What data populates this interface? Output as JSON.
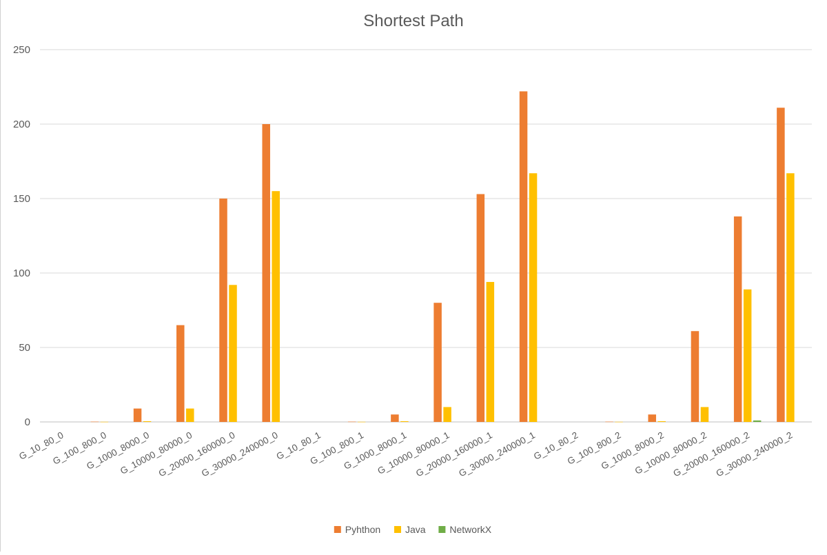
{
  "chart_data": {
    "type": "bar",
    "title": "Shortest Path",
    "xlabel": "",
    "ylabel": "",
    "ylim": [
      0,
      250
    ],
    "yticks": [
      0,
      50,
      100,
      150,
      200,
      250
    ],
    "grid": true,
    "legend_position": "bottom",
    "categories": [
      "G_10_80_0",
      "G_100_800_0",
      "G_1000_8000_0",
      "G_10000_80000_0",
      "G_20000_160000_0",
      "G_30000_240000_0",
      "G_10_80_1",
      "G_100_800_1",
      "G_1000_8000_1",
      "G_10000_80000_1",
      "G_20000_160000_1",
      "G_30000_240000_1",
      "G_10_80_2",
      "G_100_800_2",
      "G_1000_8000_2",
      "G_10000_80000_2",
      "G_20000_160000_2",
      "G_30000_240000_2"
    ],
    "series": [
      {
        "name": "Pyhthon",
        "color": "#ED7D31",
        "values": [
          0,
          0.2,
          9,
          65,
          150,
          200,
          0,
          0.2,
          5,
          80,
          153,
          222,
          0,
          0.2,
          5,
          61,
          138,
          211
        ]
      },
      {
        "name": "Java",
        "color": "#FFC000",
        "values": [
          0,
          0.1,
          0.5,
          9,
          92,
          155,
          0,
          0.1,
          0.5,
          10,
          94,
          167,
          0,
          0.1,
          0.5,
          10,
          89,
          167
        ]
      },
      {
        "name": "NetworkX",
        "color": "#70AD47",
        "values": [
          0,
          0,
          0,
          0,
          0,
          0,
          0,
          0,
          0,
          0,
          0,
          0,
          0,
          0,
          0,
          0,
          1,
          0
        ]
      }
    ]
  }
}
